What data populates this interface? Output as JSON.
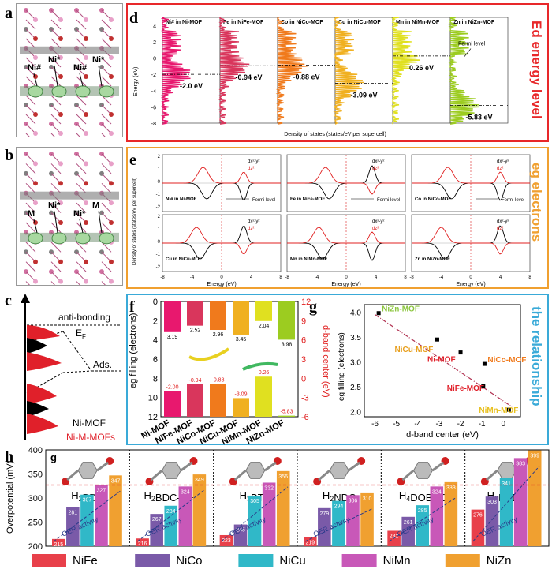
{
  "panel_labels": {
    "a": "a",
    "b": "b",
    "c": "c",
    "d": "d",
    "e": "e",
    "f": "f",
    "g": "g",
    "h": "h",
    "h_inner": "g"
  },
  "side_titles": {
    "d": "Ed energy level",
    "e": "eg electrons",
    "f": "the relationship"
  },
  "panel_a": {
    "atoms": [
      "Ni#",
      "Ni*",
      "Ni#",
      "Ni*"
    ]
  },
  "panel_b": {
    "atoms": [
      "M",
      "Ni*",
      "Ni*",
      "M"
    ]
  },
  "panel_c": {
    "anti_bonding": "anti-bonding",
    "ef": "E",
    "ef_sub": "F",
    "ads": "Ads.",
    "legend": [
      {
        "label": "Ni-MOF",
        "color": "#000000"
      },
      {
        "label": "Ni-M-MOFs",
        "color": "#e0202a"
      }
    ]
  },
  "panel_d": {
    "ylabel": "Energy (eV)",
    "xlabel": "Density of states (states/eV per supercell)",
    "fermi_label": "Fermi level",
    "yticks": [
      "4",
      "2",
      "0",
      "-2",
      "-4",
      "-6",
      "-8"
    ],
    "columns": [
      {
        "title": "Ni# in Ni-MOF",
        "value": "-2.0 eV",
        "center": -2.0,
        "color": "#e8186e"
      },
      {
        "title": "Fe in NiFe-MOF",
        "value": "-0.94 eV",
        "center": -0.94,
        "color": "#d9365c"
      },
      {
        "title": "Co in NiCo-MOF",
        "value": "-0.88 eV",
        "center": -0.88,
        "color": "#f07a1c"
      },
      {
        "title": "Cu in NiCu-MOF",
        "value": "-3.09 eV",
        "center": -3.09,
        "color": "#f0b020"
      },
      {
        "title": "Mn in NiMn-MOF",
        "value": "0.26 eV",
        "center": 0.26,
        "color": "#e0e020"
      },
      {
        "title": "Zn in NiZn-MOF",
        "value": "-5.83 eV",
        "center": -5.83,
        "color": "#9ccc20"
      }
    ]
  },
  "panel_e": {
    "ylabel": "Density of states (states/eV per supercell)",
    "xlabel": "Energy (eV)",
    "legend": [
      "dx²-y²",
      "dz²"
    ],
    "fermi_label": "Fermi level",
    "xticks": [
      "-8",
      "-4",
      "0",
      "4",
      "8"
    ],
    "yticks": [
      "2",
      "1",
      "0",
      "-1",
      "-2"
    ],
    "subplots": [
      {
        "label": "Ni# in Ni-MOF",
        "fermi": true
      },
      {
        "label": "Fe in NiFe-MOF",
        "fermi": true
      },
      {
        "label": "Co in NiCo-MOF",
        "fermi": true
      },
      {
        "label": "Cu in NiCu-MOF",
        "fermi": false
      },
      {
        "label": "Mn in NiMn-MOF",
        "fermi": false
      },
      {
        "label": "Zn in NiZn-MOF",
        "fermi": false
      }
    ]
  },
  "chart_data": [
    {
      "type": "bar",
      "categories": [
        "Ni-MOF",
        "NiFe-MOF",
        "NiCo-MOF",
        "NiCu-MOF",
        "NiMn-MOF",
        "NiZn-MOF"
      ],
      "series": [
        {
          "name": "eg filling",
          "values": [
            3.19,
            2.52,
            2.96,
            3.45,
            2.04,
            3.98
          ],
          "labels": [
            "3.19",
            "2.52",
            "2.96",
            "3.45",
            "2.04",
            "3.98"
          ]
        },
        {
          "name": "d-band center",
          "values": [
            -2.0,
            -0.94,
            -0.88,
            -3.09,
            0.26,
            -5.83
          ],
          "labels": [
            "-2.00",
            "-0.94",
            "-0.88",
            "-3.09",
            "0.26",
            "-5.83"
          ]
        }
      ],
      "ylabel": "eg filling (electrons)",
      "y2label": "d-band center (eV)",
      "ylim": [
        0,
        12
      ],
      "y2lim": [
        -6,
        12
      ],
      "yticks": [
        "0",
        "2",
        "4",
        "6",
        "8",
        "10",
        "12"
      ],
      "y2ticks": [
        "12",
        "9",
        "6",
        "3",
        "0",
        "-3",
        "-6"
      ]
    },
    {
      "type": "scatter",
      "xlabel": "d-band center (eV)",
      "ylabel": "eg filling (electrons)",
      "xlim": [
        -6.5,
        0.8
      ],
      "ylim": [
        1.9,
        4.15
      ],
      "xticks": [
        "-6",
        "-5",
        "-4",
        "-3",
        "-2",
        "-1",
        "0"
      ],
      "yticks": [
        "2.0",
        "2.5",
        "3.0",
        "3.5",
        "4.0"
      ],
      "points": [
        {
          "label": "NiZn-MOF",
          "x": -5.83,
          "y": 3.98,
          "color": "#8cc63f"
        },
        {
          "label": "NiCu-MOF",
          "x": -3.09,
          "y": 3.45,
          "color": "#e8a020"
        },
        {
          "label": "Ni-MOF",
          "x": -2.0,
          "y": 3.19,
          "color": "#e0202a"
        },
        {
          "label": "NiCo-MOF",
          "x": -0.88,
          "y": 2.96,
          "color": "#f07a1c"
        },
        {
          "label": "NiFe-MOF",
          "x": -0.94,
          "y": 2.52,
          "color": "#e0202a"
        },
        {
          "label": "NiMn-MOF",
          "x": 0.26,
          "y": 2.04,
          "color": "#e8c020"
        }
      ]
    },
    {
      "type": "bar",
      "ylabel": "Overpotential (mV)",
      "ylim": [
        200,
        400
      ],
      "yticks": [
        "200",
        "250",
        "300",
        "350",
        "400"
      ],
      "series_names": [
        "NiFe",
        "NiCo",
        "NiCu",
        "NiMn",
        "NiZn"
      ],
      "series_colors": [
        "#e8404a",
        "#7a5aa8",
        "#30b8c8",
        "#c858b8",
        "#f0a030"
      ],
      "trend_label": "OER activity",
      "groups": [
        {
          "ligand": "H2BDC",
          "base": "H",
          "sub1": "2",
          "rest": "BDC",
          "sub2": "",
          "tail": "",
          "values": [
            215,
            281,
            307,
            327,
            347
          ]
        },
        {
          "ligand": "H2BDC-NH2",
          "base": "H",
          "sub1": "2",
          "rest": "BDC-NH",
          "sub2": "2",
          "tail": "",
          "values": [
            216,
            267,
            284,
            324,
            349
          ]
        },
        {
          "ligand": "H3BTC",
          "base": "H",
          "sub1": "3",
          "rest": "BTC",
          "sub2": "",
          "tail": "",
          "values": [
            223,
            245,
            305,
            332,
            356
          ]
        },
        {
          "ligand": "H2NDC",
          "base": "H",
          "sub1": "2",
          "rest": "NDC",
          "sub2": "",
          "tail": "",
          "values": [
            219,
            279,
            294,
            306,
            310
          ]
        },
        {
          "ligand": "H4DOBDC",
          "base": "H",
          "sub1": "4",
          "rest": "DOBDC",
          "sub2": "",
          "tail": "",
          "values": [
            232,
            261,
            285,
            324,
            333
          ]
        },
        {
          "ligand": "H2PYDC",
          "base": "H",
          "sub1": "2",
          "rest": "PYDC",
          "sub2": "",
          "tail": "",
          "values": [
            276,
            303,
            341,
            383,
            399
          ]
        }
      ]
    }
  ]
}
